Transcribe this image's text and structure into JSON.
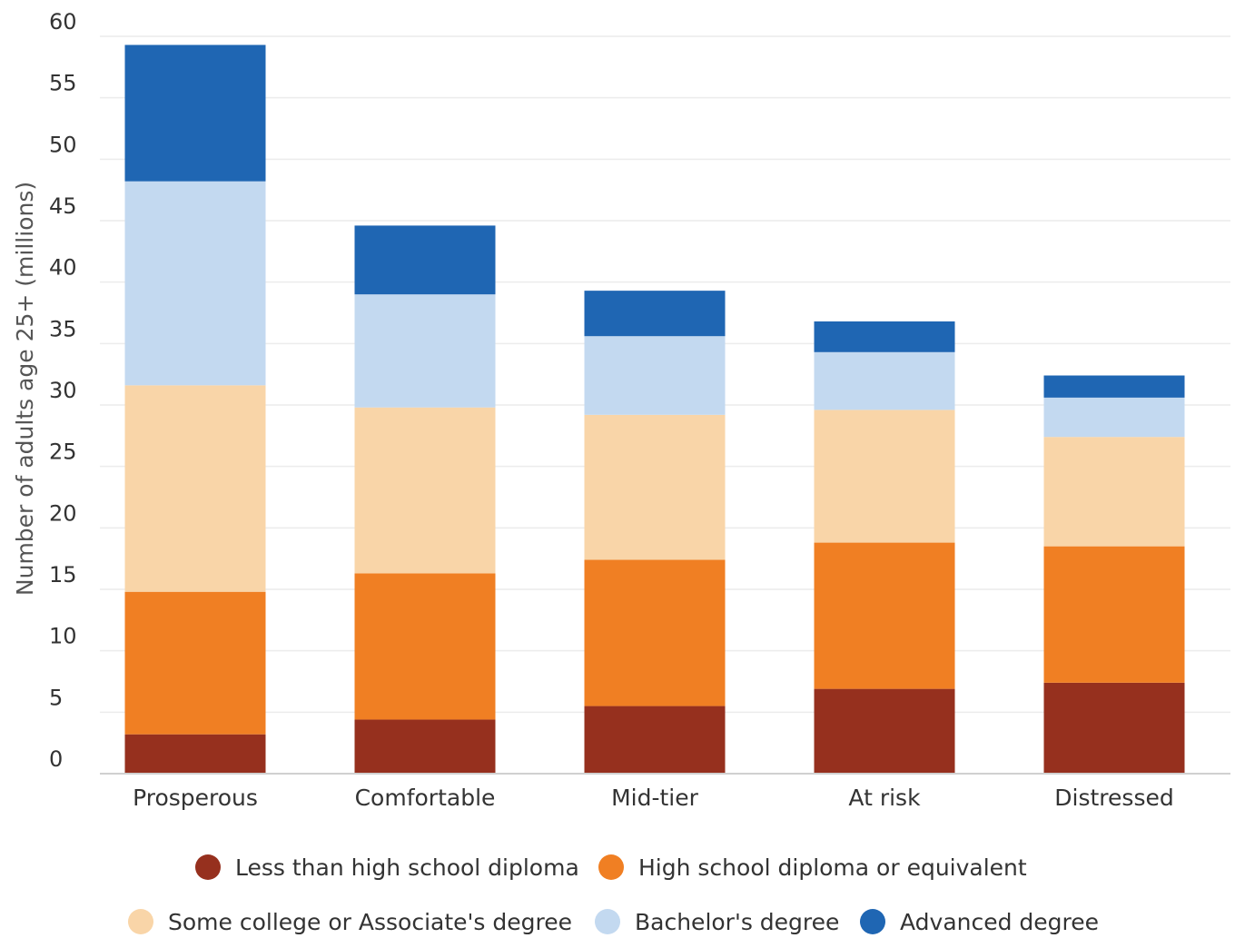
{
  "chart_data": {
    "type": "bar",
    "stacked": true,
    "title": "",
    "xlabel": "",
    "ylabel": "Number of adults age 25+ (millions)",
    "ylim": [
      0,
      60
    ],
    "yticks": [
      "0",
      "5",
      "10",
      "15",
      "20",
      "25",
      "30",
      "35",
      "40",
      "45",
      "50",
      "55",
      "60"
    ],
    "grid": true,
    "legend_position": "bottom",
    "categories": [
      "Prosperous",
      "Comfortable",
      "Mid-tier",
      "At risk",
      "Distressed"
    ],
    "series": [
      {
        "name": "Less than high school diploma",
        "color": "#96301e",
        "values": [
          3.2,
          4.4,
          5.5,
          6.9,
          7.4
        ]
      },
      {
        "name": "High school diploma or equivalent",
        "color": "#f07f23",
        "values": [
          11.6,
          11.9,
          11.9,
          11.9,
          11.1
        ]
      },
      {
        "name": "Some college or Associate's degree",
        "color": "#f9d5a8",
        "values": [
          16.8,
          13.5,
          11.8,
          10.8,
          8.9
        ]
      },
      {
        "name": "Bachelor's degree",
        "color": "#c3d9f0",
        "values": [
          16.6,
          9.2,
          6.4,
          4.7,
          3.2
        ]
      },
      {
        "name": "Advanced degree",
        "color": "#1f66b3",
        "values": [
          11.1,
          5.6,
          3.7,
          2.5,
          1.8
        ]
      }
    ]
  }
}
